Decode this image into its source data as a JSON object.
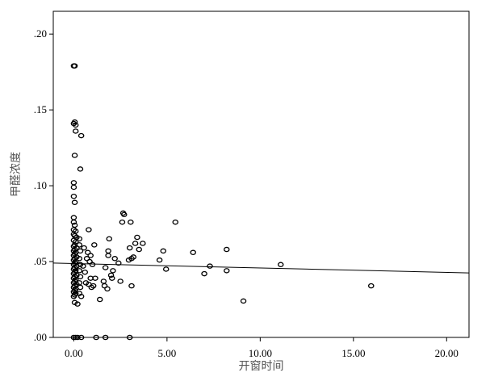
{
  "chart_data": {
    "type": "scatter",
    "title": "",
    "xlabel": "开窗时间",
    "ylabel": "甲醛浓度",
    "xlim": [
      -1.1,
      21.2
    ],
    "ylim": [
      0.0,
      0.215
    ],
    "x_ticks": [
      0,
      5,
      10,
      15,
      20
    ],
    "x_tick_labels": [
      "0.00",
      "5.00",
      "10.00",
      "15.00",
      "20.00"
    ],
    "y_ticks": [
      0.0,
      0.05,
      0.1,
      0.15,
      0.2
    ],
    "y_tick_labels": [
      ".00",
      ".05",
      ".10",
      ".15",
      ".20"
    ],
    "grid": false,
    "legend": "none",
    "colors": {
      "points": "#000000",
      "fit_line": "#000000",
      "frame": "#000000",
      "background": "#ffffff"
    },
    "fit_line": {
      "x": [
        -1.1,
        21.2
      ],
      "y": [
        0.049,
        0.0425
      ]
    },
    "points": [
      {
        "x": 0.0,
        "y": 0.179
      },
      {
        "x": 0.05,
        "y": 0.179
      },
      {
        "x": 0.0,
        "y": 0.141
      },
      {
        "x": 0.05,
        "y": 0.142
      },
      {
        "x": 0.1,
        "y": 0.14
      },
      {
        "x": 0.1,
        "y": 0.136
      },
      {
        "x": 0.4,
        "y": 0.133
      },
      {
        "x": 0.05,
        "y": 0.12
      },
      {
        "x": 0.35,
        "y": 0.111
      },
      {
        "x": 0.0,
        "y": 0.102
      },
      {
        "x": 0.0,
        "y": 0.099
      },
      {
        "x": 0.0,
        "y": 0.093
      },
      {
        "x": 0.05,
        "y": 0.089
      },
      {
        "x": 0.0,
        "y": 0.079
      },
      {
        "x": 0.0,
        "y": 0.076
      },
      {
        "x": 0.05,
        "y": 0.074
      },
      {
        "x": 0.0,
        "y": 0.071
      },
      {
        "x": 0.1,
        "y": 0.07
      },
      {
        "x": 0.0,
        "y": 0.068
      },
      {
        "x": 0.05,
        "y": 0.067
      },
      {
        "x": 0.15,
        "y": 0.066
      },
      {
        "x": 0.0,
        "y": 0.064
      },
      {
        "x": 0.1,
        "y": 0.063
      },
      {
        "x": 0.05,
        "y": 0.061
      },
      {
        "x": 0.0,
        "y": 0.06
      },
      {
        "x": 0.15,
        "y": 0.059
      },
      {
        "x": 0.05,
        "y": 0.058
      },
      {
        "x": 0.0,
        "y": 0.057
      },
      {
        "x": 0.1,
        "y": 0.056
      },
      {
        "x": 0.05,
        "y": 0.055
      },
      {
        "x": 0.0,
        "y": 0.054
      },
      {
        "x": 0.15,
        "y": 0.053
      },
      {
        "x": 0.05,
        "y": 0.052
      },
      {
        "x": 0.0,
        "y": 0.051
      },
      {
        "x": 0.1,
        "y": 0.05
      },
      {
        "x": 0.05,
        "y": 0.049
      },
      {
        "x": 0.0,
        "y": 0.048
      },
      {
        "x": 0.15,
        "y": 0.047
      },
      {
        "x": 0.05,
        "y": 0.046
      },
      {
        "x": 0.0,
        "y": 0.045
      },
      {
        "x": 0.1,
        "y": 0.044
      },
      {
        "x": 0.05,
        "y": 0.043
      },
      {
        "x": 0.0,
        "y": 0.042
      },
      {
        "x": 0.15,
        "y": 0.041
      },
      {
        "x": 0.05,
        "y": 0.04
      },
      {
        "x": 0.0,
        "y": 0.039
      },
      {
        "x": 0.1,
        "y": 0.038
      },
      {
        "x": 0.05,
        "y": 0.037
      },
      {
        "x": 0.0,
        "y": 0.036
      },
      {
        "x": 0.15,
        "y": 0.035
      },
      {
        "x": 0.05,
        "y": 0.034
      },
      {
        "x": 0.0,
        "y": 0.033
      },
      {
        "x": 0.1,
        "y": 0.032
      },
      {
        "x": 0.05,
        "y": 0.031
      },
      {
        "x": 0.0,
        "y": 0.03
      },
      {
        "x": 0.1,
        "y": 0.029
      },
      {
        "x": 0.05,
        "y": 0.028
      },
      {
        "x": 0.0,
        "y": 0.027
      },
      {
        "x": 0.05,
        "y": 0.023
      },
      {
        "x": 0.2,
        "y": 0.022
      },
      {
        "x": 0.3,
        "y": 0.065
      },
      {
        "x": 0.3,
        "y": 0.061
      },
      {
        "x": 0.35,
        "y": 0.057
      },
      {
        "x": 0.3,
        "y": 0.052
      },
      {
        "x": 0.35,
        "y": 0.048
      },
      {
        "x": 0.3,
        "y": 0.044
      },
      {
        "x": 0.35,
        "y": 0.04
      },
      {
        "x": 0.3,
        "y": 0.036
      },
      {
        "x": 0.35,
        "y": 0.033
      },
      {
        "x": 0.3,
        "y": 0.029
      },
      {
        "x": 0.4,
        "y": 0.027
      },
      {
        "x": 0.0,
        "y": 0.0
      },
      {
        "x": 0.1,
        "y": 0.0
      },
      {
        "x": 0.2,
        "y": 0.0
      },
      {
        "x": 0.4,
        "y": 0.0
      },
      {
        "x": 1.2,
        "y": 0.0
      },
      {
        "x": 1.7,
        "y": 0.0
      },
      {
        "x": 3.0,
        "y": 0.0
      },
      {
        "x": 0.5,
        "y": 0.047
      },
      {
        "x": 0.55,
        "y": 0.059
      },
      {
        "x": 0.6,
        "y": 0.043
      },
      {
        "x": 0.65,
        "y": 0.036
      },
      {
        "x": 0.7,
        "y": 0.052
      },
      {
        "x": 0.75,
        "y": 0.056
      },
      {
        "x": 0.8,
        "y": 0.071
      },
      {
        "x": 0.8,
        "y": 0.035
      },
      {
        "x": 0.85,
        "y": 0.05
      },
      {
        "x": 0.9,
        "y": 0.054
      },
      {
        "x": 0.9,
        "y": 0.039
      },
      {
        "x": 0.95,
        "y": 0.033
      },
      {
        "x": 1.0,
        "y": 0.048
      },
      {
        "x": 1.05,
        "y": 0.034
      },
      {
        "x": 1.1,
        "y": 0.061
      },
      {
        "x": 1.15,
        "y": 0.039
      },
      {
        "x": 1.4,
        "y": 0.025
      },
      {
        "x": 1.6,
        "y": 0.037
      },
      {
        "x": 1.65,
        "y": 0.034
      },
      {
        "x": 1.7,
        "y": 0.046
      },
      {
        "x": 1.8,
        "y": 0.032
      },
      {
        "x": 1.85,
        "y": 0.054
      },
      {
        "x": 1.85,
        "y": 0.057
      },
      {
        "x": 1.9,
        "y": 0.065
      },
      {
        "x": 2.0,
        "y": 0.041
      },
      {
        "x": 2.05,
        "y": 0.039
      },
      {
        "x": 2.1,
        "y": 0.044
      },
      {
        "x": 2.2,
        "y": 0.052
      },
      {
        "x": 2.4,
        "y": 0.049
      },
      {
        "x": 2.5,
        "y": 0.037
      },
      {
        "x": 2.6,
        "y": 0.076
      },
      {
        "x": 2.65,
        "y": 0.082
      },
      {
        "x": 2.7,
        "y": 0.081
      },
      {
        "x": 2.95,
        "y": 0.051
      },
      {
        "x": 3.0,
        "y": 0.059
      },
      {
        "x": 3.05,
        "y": 0.076
      },
      {
        "x": 3.1,
        "y": 0.052
      },
      {
        "x": 3.1,
        "y": 0.034
      },
      {
        "x": 3.2,
        "y": 0.053
      },
      {
        "x": 3.3,
        "y": 0.062
      },
      {
        "x": 3.4,
        "y": 0.066
      },
      {
        "x": 3.5,
        "y": 0.058
      },
      {
        "x": 3.7,
        "y": 0.062
      },
      {
        "x": 4.6,
        "y": 0.051
      },
      {
        "x": 4.8,
        "y": 0.057
      },
      {
        "x": 4.95,
        "y": 0.045
      },
      {
        "x": 5.45,
        "y": 0.076
      },
      {
        "x": 6.4,
        "y": 0.056
      },
      {
        "x": 7.0,
        "y": 0.042
      },
      {
        "x": 7.3,
        "y": 0.047
      },
      {
        "x": 8.2,
        "y": 0.058
      },
      {
        "x": 8.2,
        "y": 0.044
      },
      {
        "x": 9.1,
        "y": 0.024
      },
      {
        "x": 11.1,
        "y": 0.048
      },
      {
        "x": 15.95,
        "y": 0.034
      }
    ]
  }
}
